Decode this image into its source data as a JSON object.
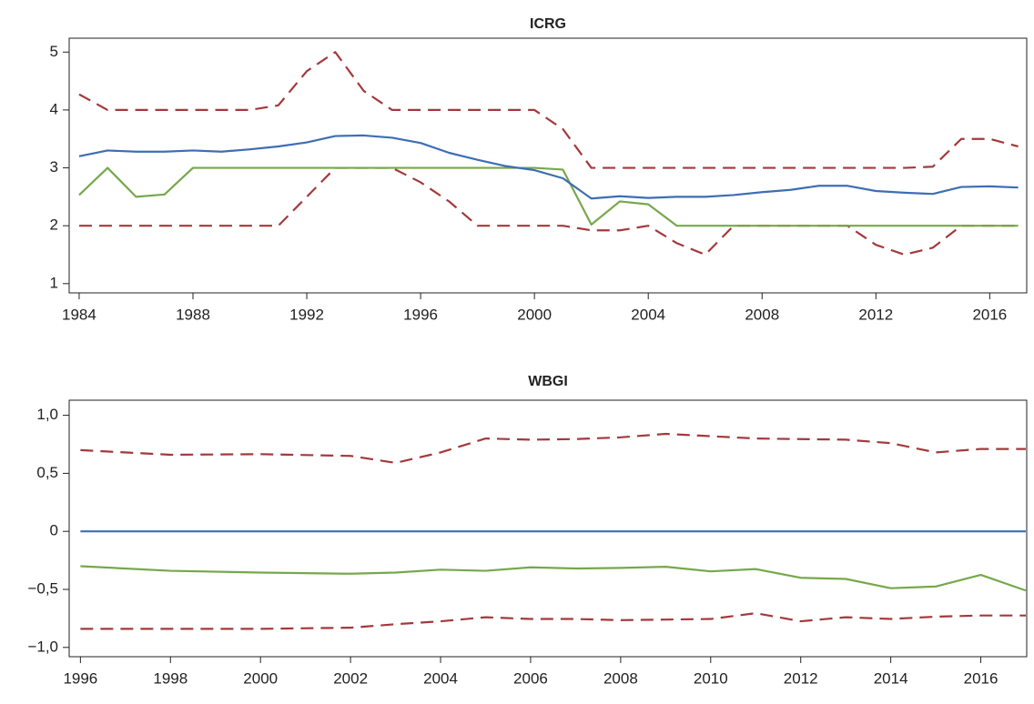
{
  "chart_data": [
    {
      "type": "line",
      "title": "ICRG",
      "x": [
        1984,
        1985,
        1986,
        1987,
        1988,
        1989,
        1990,
        1991,
        1992,
        1993,
        1994,
        1995,
        1996,
        1997,
        1998,
        1999,
        2000,
        2001,
        2002,
        2003,
        2004,
        2005,
        2006,
        2007,
        2008,
        2009,
        2010,
        2011,
        2012,
        2013,
        2014,
        2015,
        2016,
        2017
      ],
      "series": [
        {
          "color": "#a3393b",
          "dash": true,
          "values": [
            4.27,
            4.0,
            4.0,
            4.0,
            4.0,
            4.0,
            4.0,
            4.08,
            4.67,
            5.0,
            4.33,
            4.0,
            4.0,
            4.0,
            4.0,
            4.0,
            4.0,
            3.67,
            3.0,
            3.0,
            3.0,
            3.0,
            3.0,
            3.0,
            3.0,
            3.0,
            3.0,
            3.0,
            3.0,
            3.0,
            3.02,
            3.5,
            3.5,
            3.37
          ]
        },
        {
          "color": "#a3393b",
          "dash": true,
          "values": [
            2.0,
            2.0,
            2.0,
            2.0,
            2.0,
            2.0,
            2.0,
            2.0,
            2.5,
            3.0,
            3.0,
            3.0,
            2.75,
            2.42,
            2.0,
            2.0,
            2.0,
            2.0,
            1.92,
            1.92,
            2.0,
            1.7,
            1.5,
            2.0,
            2.0,
            2.0,
            2.0,
            2.0,
            1.67,
            1.5,
            1.62,
            2.0,
            2.0,
            2.0
          ]
        },
        {
          "color": "#76a84b",
          "dash": false,
          "values": [
            2.53,
            3.0,
            2.5,
            2.54,
            3.0,
            3.0,
            3.0,
            3.0,
            3.0,
            3.0,
            3.0,
            3.0,
            3.0,
            3.0,
            3.0,
            3.0,
            3.0,
            2.97,
            2.02,
            2.42,
            2.37,
            2.0,
            2.0,
            2.0,
            2.0,
            2.0,
            2.0,
            2.0,
            2.0,
            2.0,
            2.0,
            2.0,
            2.0,
            2.0
          ]
        },
        {
          "color": "#3d6eb3",
          "dash": false,
          "values": [
            3.2,
            3.3,
            3.28,
            3.28,
            3.3,
            3.28,
            3.32,
            3.37,
            3.44,
            3.55,
            3.56,
            3.52,
            3.43,
            3.26,
            3.14,
            3.03,
            2.96,
            2.82,
            2.47,
            2.51,
            2.48,
            2.5,
            2.5,
            2.53,
            2.58,
            2.62,
            2.69,
            2.69,
            2.6,
            2.57,
            2.55,
            2.67,
            2.68,
            2.66
          ]
        }
      ],
      "xlim": [
        1983.65,
        2017.3
      ],
      "ylim": [
        0.84,
        5.24
      ],
      "xticks": [
        1984,
        1988,
        1992,
        1996,
        2000,
        2004,
        2008,
        2012,
        2016
      ],
      "yticks": [
        1,
        2,
        3,
        4,
        5
      ]
    },
    {
      "type": "line",
      "title": "WBGI",
      "x": [
        1996,
        1998,
        2000,
        2002,
        2003,
        2004,
        2005,
        2006,
        2007,
        2008,
        2009,
        2010,
        2011,
        2012,
        2013,
        2014,
        2015,
        2016,
        2017
      ],
      "series": [
        {
          "color": "#a3393b",
          "dash": true,
          "values": [
            0.7,
            0.66,
            0.665,
            0.65,
            0.59,
            0.68,
            0.8,
            0.79,
            0.795,
            0.81,
            0.84,
            0.82,
            0.8,
            0.795,
            0.79,
            0.76,
            0.68,
            0.71,
            0.71
          ]
        },
        {
          "color": "#a3393b",
          "dash": true,
          "values": [
            -0.84,
            -0.84,
            -0.84,
            -0.83,
            -0.8,
            -0.775,
            -0.74,
            -0.755,
            -0.755,
            -0.765,
            -0.76,
            -0.755,
            -0.705,
            -0.775,
            -0.74,
            -0.755,
            -0.735,
            -0.725,
            -0.725
          ]
        },
        {
          "color": "#76a84b",
          "dash": false,
          "values": [
            -0.3,
            -0.34,
            -0.355,
            -0.365,
            -0.355,
            -0.33,
            -0.34,
            -0.31,
            -0.32,
            -0.315,
            -0.305,
            -0.345,
            -0.325,
            -0.4,
            -0.41,
            -0.49,
            -0.475,
            -0.375,
            -0.51
          ]
        },
        {
          "color": "#3d6eb3",
          "dash": false,
          "values": [
            0,
            0,
            0,
            0,
            0,
            0,
            0,
            0,
            0,
            0,
            0,
            0,
            0,
            0,
            0,
            0,
            0,
            0,
            0
          ]
        }
      ],
      "xlim": [
        1995.75,
        2017.02
      ],
      "ylim": [
        -1.08,
        1.13
      ],
      "xticks": [
        1996,
        1998,
        2000,
        2002,
        2004,
        2006,
        2008,
        2010,
        2012,
        2014,
        2016
      ],
      "yticks": [
        {
          "value": -1.0,
          "label": "−1,0"
        },
        {
          "value": -0.5,
          "label": "−0,5"
        },
        0,
        {
          "value": 0.5,
          "label": "0,5"
        },
        {
          "value": 1.0,
          "label": "1,0"
        }
      ]
    }
  ]
}
